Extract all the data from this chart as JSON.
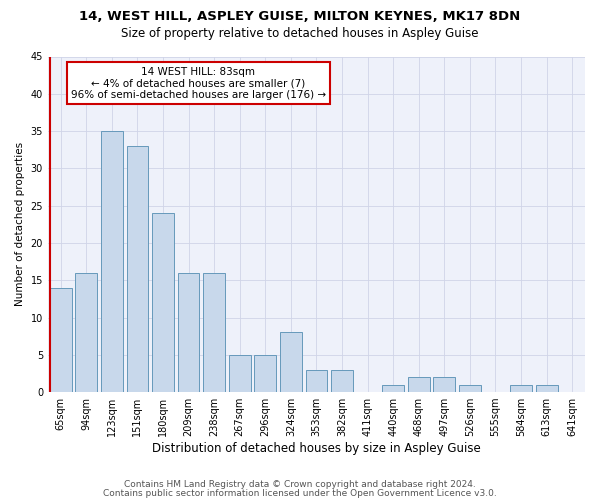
{
  "title": "14, WEST HILL, ASPLEY GUISE, MILTON KEYNES, MK17 8DN",
  "subtitle": "Size of property relative to detached houses in Aspley Guise",
  "xlabel": "Distribution of detached houses by size in Aspley Guise",
  "ylabel": "Number of detached properties",
  "categories": [
    "65sqm",
    "94sqm",
    "123sqm",
    "151sqm",
    "180sqm",
    "209sqm",
    "238sqm",
    "267sqm",
    "296sqm",
    "324sqm",
    "353sqm",
    "382sqm",
    "411sqm",
    "440sqm",
    "468sqm",
    "497sqm",
    "526sqm",
    "555sqm",
    "584sqm",
    "613sqm",
    "641sqm"
  ],
  "values": [
    14,
    16,
    35,
    33,
    24,
    16,
    16,
    5,
    5,
    8,
    3,
    3,
    0,
    1,
    2,
    2,
    1,
    0,
    1,
    1,
    0
  ],
  "bar_color": "#c8d8eb",
  "bar_edge_color": "#6699bb",
  "background_color": "#eef1fa",
  "grid_color": "#d0d4e8",
  "annotation_line1": "14 WEST HILL: 83sqm",
  "annotation_line2": "← 4% of detached houses are smaller (7)",
  "annotation_line3": "96% of semi-detached houses are larger (176) →",
  "annotation_box_color": "#ffffff",
  "annotation_edge_color": "#cc0000",
  "vline_color": "#cc0000",
  "ylim": [
    0,
    45
  ],
  "yticks": [
    0,
    5,
    10,
    15,
    20,
    25,
    30,
    35,
    40,
    45
  ],
  "footer1": "Contains HM Land Registry data © Crown copyright and database right 2024.",
  "footer2": "Contains public sector information licensed under the Open Government Licence v3.0.",
  "title_fontsize": 9.5,
  "subtitle_fontsize": 8.5,
  "xlabel_fontsize": 8.5,
  "ylabel_fontsize": 7.5,
  "tick_fontsize": 7,
  "annotation_fontsize": 7.5,
  "footer_fontsize": 6.5
}
